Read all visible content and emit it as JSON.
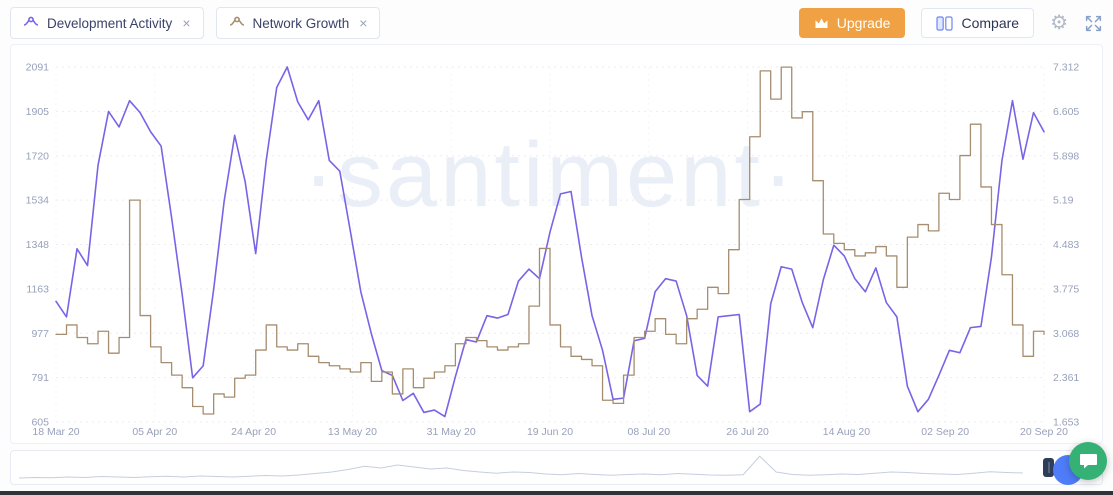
{
  "toolbar": {
    "chips": [
      {
        "label": "Development Activity",
        "close": "×",
        "color": "#7a63e6"
      },
      {
        "label": "Network Growth",
        "close": "×",
        "color": "#a58d6f"
      }
    ],
    "upgrade_label": "Upgrade",
    "compare_label": "Compare"
  },
  "watermark": "·santiment·",
  "colors": {
    "upgrade_bg": "#efa143",
    "chat_green": "#35b176",
    "helper_blue": "#4f7df9",
    "dev_activity": "#7a63e6",
    "network_growth": "#a58d6f"
  },
  "chart_data": {
    "type": "line",
    "title": "",
    "legend": "none",
    "grid": "dashed",
    "x_tick_labels": [
      "18 Mar 20",
      "05 Apr 20",
      "24 Apr 20",
      "13 May 20",
      "31 May 20",
      "19 Jun 20",
      "08 Jul 20",
      "26 Jul 20",
      "14 Aug 20",
      "02 Sep 20",
      "20 Sep 20"
    ],
    "left_axis": {
      "label": "Development Activity",
      "min": 605,
      "max": 2091,
      "tick_labels": [
        "2091",
        "1905",
        "1720",
        "1534",
        "1348",
        "1163",
        "977",
        "791",
        "605"
      ]
    },
    "right_axis": {
      "label": "Network Growth",
      "min": 1.653,
      "max": 7.312,
      "tick_labels": [
        "7.312",
        "6.605",
        "5.898",
        "5.19",
        "4.483",
        "3.775",
        "3.068",
        "2.361",
        "1.653"
      ]
    },
    "series": [
      {
        "name": "Development Activity",
        "axis": "left",
        "color": "#7a63e6",
        "line_style": "linear",
        "values": [
          1110,
          1045,
          1330,
          1260,
          1680,
          1905,
          1840,
          1950,
          1900,
          1820,
          1760,
          1460,
          1140,
          790,
          840,
          1160,
          1530,
          1805,
          1610,
          1310,
          1700,
          2005,
          2091,
          1945,
          1870,
          1950,
          1700,
          1655,
          1405,
          1150,
          975,
          820,
          800,
          695,
          725,
          645,
          655,
          628,
          795,
          950,
          940,
          1050,
          1040,
          1055,
          1195,
          1245,
          1205,
          1400,
          1560,
          1570,
          1295,
          1050,
          905,
          700,
          705,
          945,
          955,
          1150,
          1205,
          1195,
          1050,
          800,
          755,
          1045,
          1050,
          1055,
          648,
          680,
          1100,
          1255,
          1245,
          1105,
          1000,
          1200,
          1345,
          1300,
          1205,
          1150,
          1250,
          1105,
          1045,
          755,
          648,
          700,
          800,
          905,
          895,
          1000,
          1005,
          1295,
          1700,
          1950,
          1705,
          1900,
          1820
        ]
      },
      {
        "name": "Network Growth",
        "axis": "right",
        "color": "#a58d6f",
        "line_style": "step",
        "values": [
          3.05,
          3.2,
          3.0,
          2.9,
          3.1,
          2.75,
          3.0,
          5.19,
          3.35,
          2.85,
          2.6,
          2.4,
          2.2,
          1.9,
          1.78,
          2.1,
          2.05,
          2.35,
          2.4,
          2.8,
          3.2,
          2.85,
          2.8,
          2.9,
          2.7,
          2.6,
          2.55,
          2.5,
          2.45,
          2.6,
          2.3,
          2.45,
          2.1,
          2.5,
          2.2,
          2.35,
          2.45,
          2.55,
          2.9,
          3.0,
          2.95,
          2.85,
          2.8,
          2.85,
          2.9,
          3.5,
          4.42,
          3.2,
          2.85,
          2.7,
          2.65,
          2.55,
          2.0,
          1.95,
          2.4,
          3.0,
          3.1,
          3.3,
          3.05,
          2.9,
          3.3,
          3.45,
          3.8,
          3.7,
          4.4,
          5.2,
          6.2,
          7.25,
          6.8,
          7.31,
          6.5,
          6.6,
          5.5,
          4.65,
          4.5,
          4.4,
          4.3,
          4.35,
          4.45,
          4.3,
          3.8,
          4.6,
          4.8,
          4.7,
          5.3,
          5.2,
          5.9,
          6.4,
          5.4,
          4.8,
          4.0,
          3.2,
          2.7,
          3.1,
          3.05
        ]
      }
    ],
    "minimap": {
      "values": [
        0.08,
        0.1,
        0.09,
        0.12,
        0.1,
        0.14,
        0.12,
        0.1,
        0.13,
        0.15,
        0.12,
        0.16,
        0.14,
        0.12,
        0.15,
        0.18,
        0.16,
        0.2,
        0.26,
        0.32,
        0.42,
        0.55,
        0.48,
        0.6,
        0.52,
        0.44,
        0.48,
        0.38,
        0.32,
        0.27,
        0.32,
        0.3,
        0.24,
        0.21,
        0.26,
        0.22,
        0.19,
        0.22,
        0.24,
        0.21,
        0.26,
        0.23,
        0.2,
        0.19,
        0.21,
        0.95,
        0.32,
        0.22,
        0.19,
        0.21,
        0.24,
        0.22,
        0.27,
        0.32,
        0.3,
        0.26,
        0.24,
        0.22,
        0.27,
        0.33,
        0.3,
        0.28
      ]
    }
  }
}
